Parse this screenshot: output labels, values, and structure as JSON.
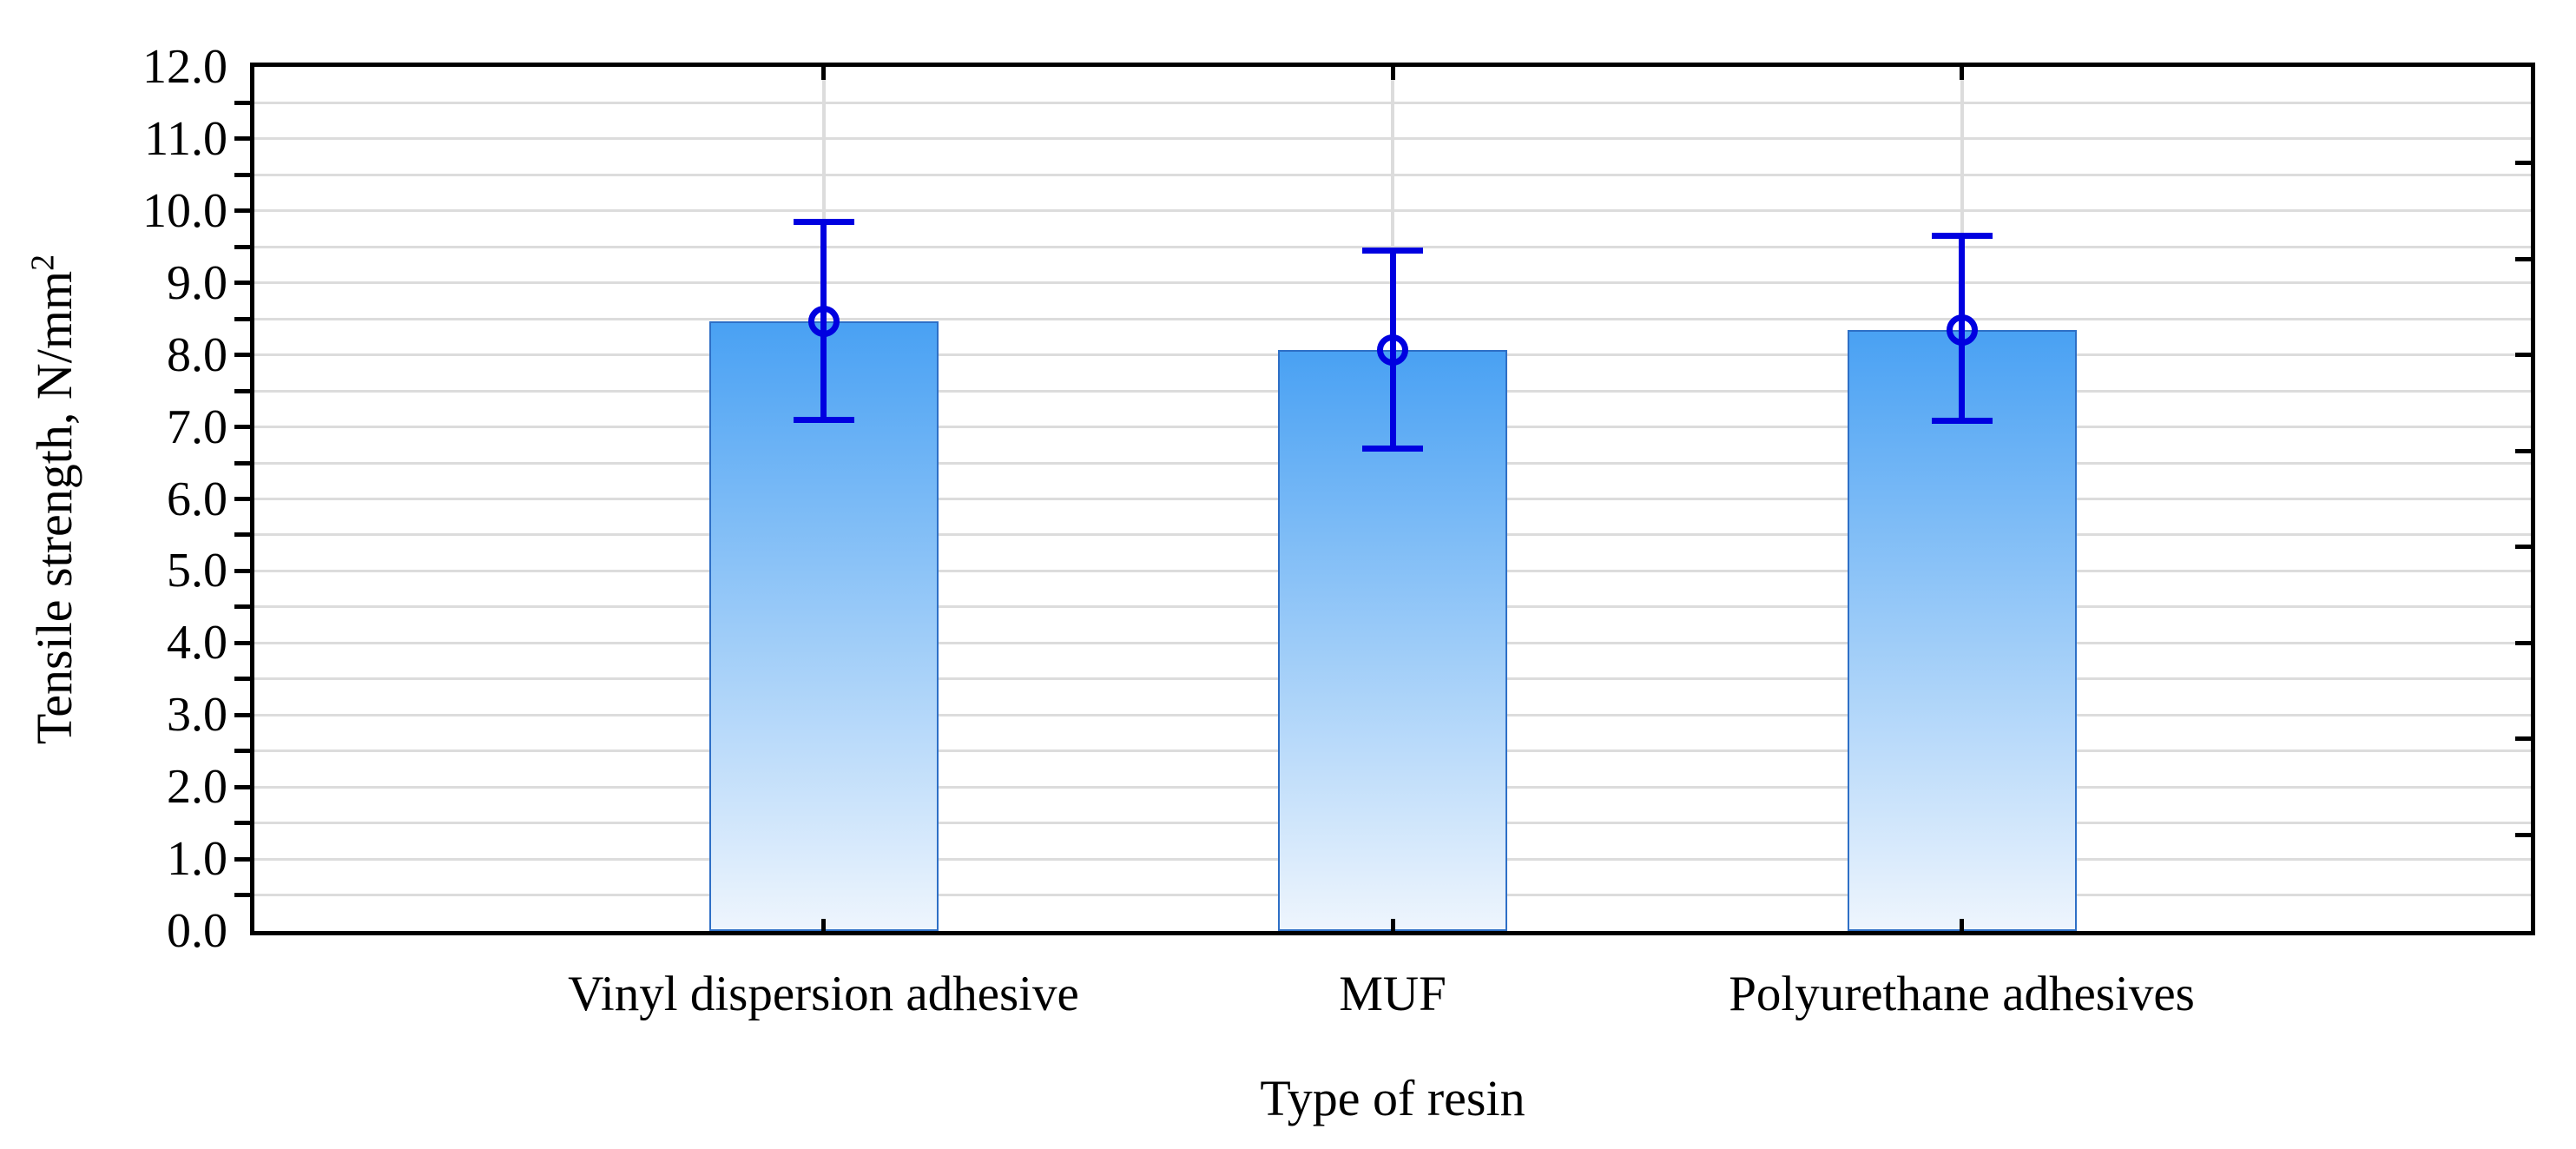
{
  "chart_data": {
    "type": "bar",
    "categories": [
      "Vinyl dispersion adhesive",
      "MUF",
      "Polyurethane adhesives"
    ],
    "series": [
      {
        "name": "Tensile strength",
        "means": [
          8.47,
          8.07,
          8.35
        ],
        "whisker_low": [
          7.1,
          6.7,
          7.08
        ],
        "whisker_high": [
          9.85,
          9.45,
          9.65
        ]
      }
    ],
    "title": "",
    "xlabel": "Type of resin",
    "ylabel": "Tensile strength, N/mm²",
    "ylim": [
      0,
      12
    ],
    "ytick_step": 1.0,
    "grid_step": 0.5,
    "grid": true,
    "legend": "none",
    "marker": "open-circle",
    "right_axis_divisions": 9
  },
  "axes": {
    "ylabel_base": "Tensile strength, N/mm",
    "ylabel_sup": "2",
    "xlabel": "Type of resin",
    "ytick_labels": [
      "0.0",
      "1.0",
      "2.0",
      "3.0",
      "4.0",
      "5.0",
      "6.0",
      "7.0",
      "8.0",
      "9.0",
      "10.0",
      "11.0",
      "12.0"
    ]
  },
  "colors": {
    "bar_top": "#49a1f3",
    "bar_bottom": "#eef5fd",
    "bar_border": "#2e6fc6",
    "whisker": "#0000e0",
    "gridline": "#dcdcdc",
    "frame": "#000000",
    "text": "#000000",
    "background": "#ffffff"
  }
}
